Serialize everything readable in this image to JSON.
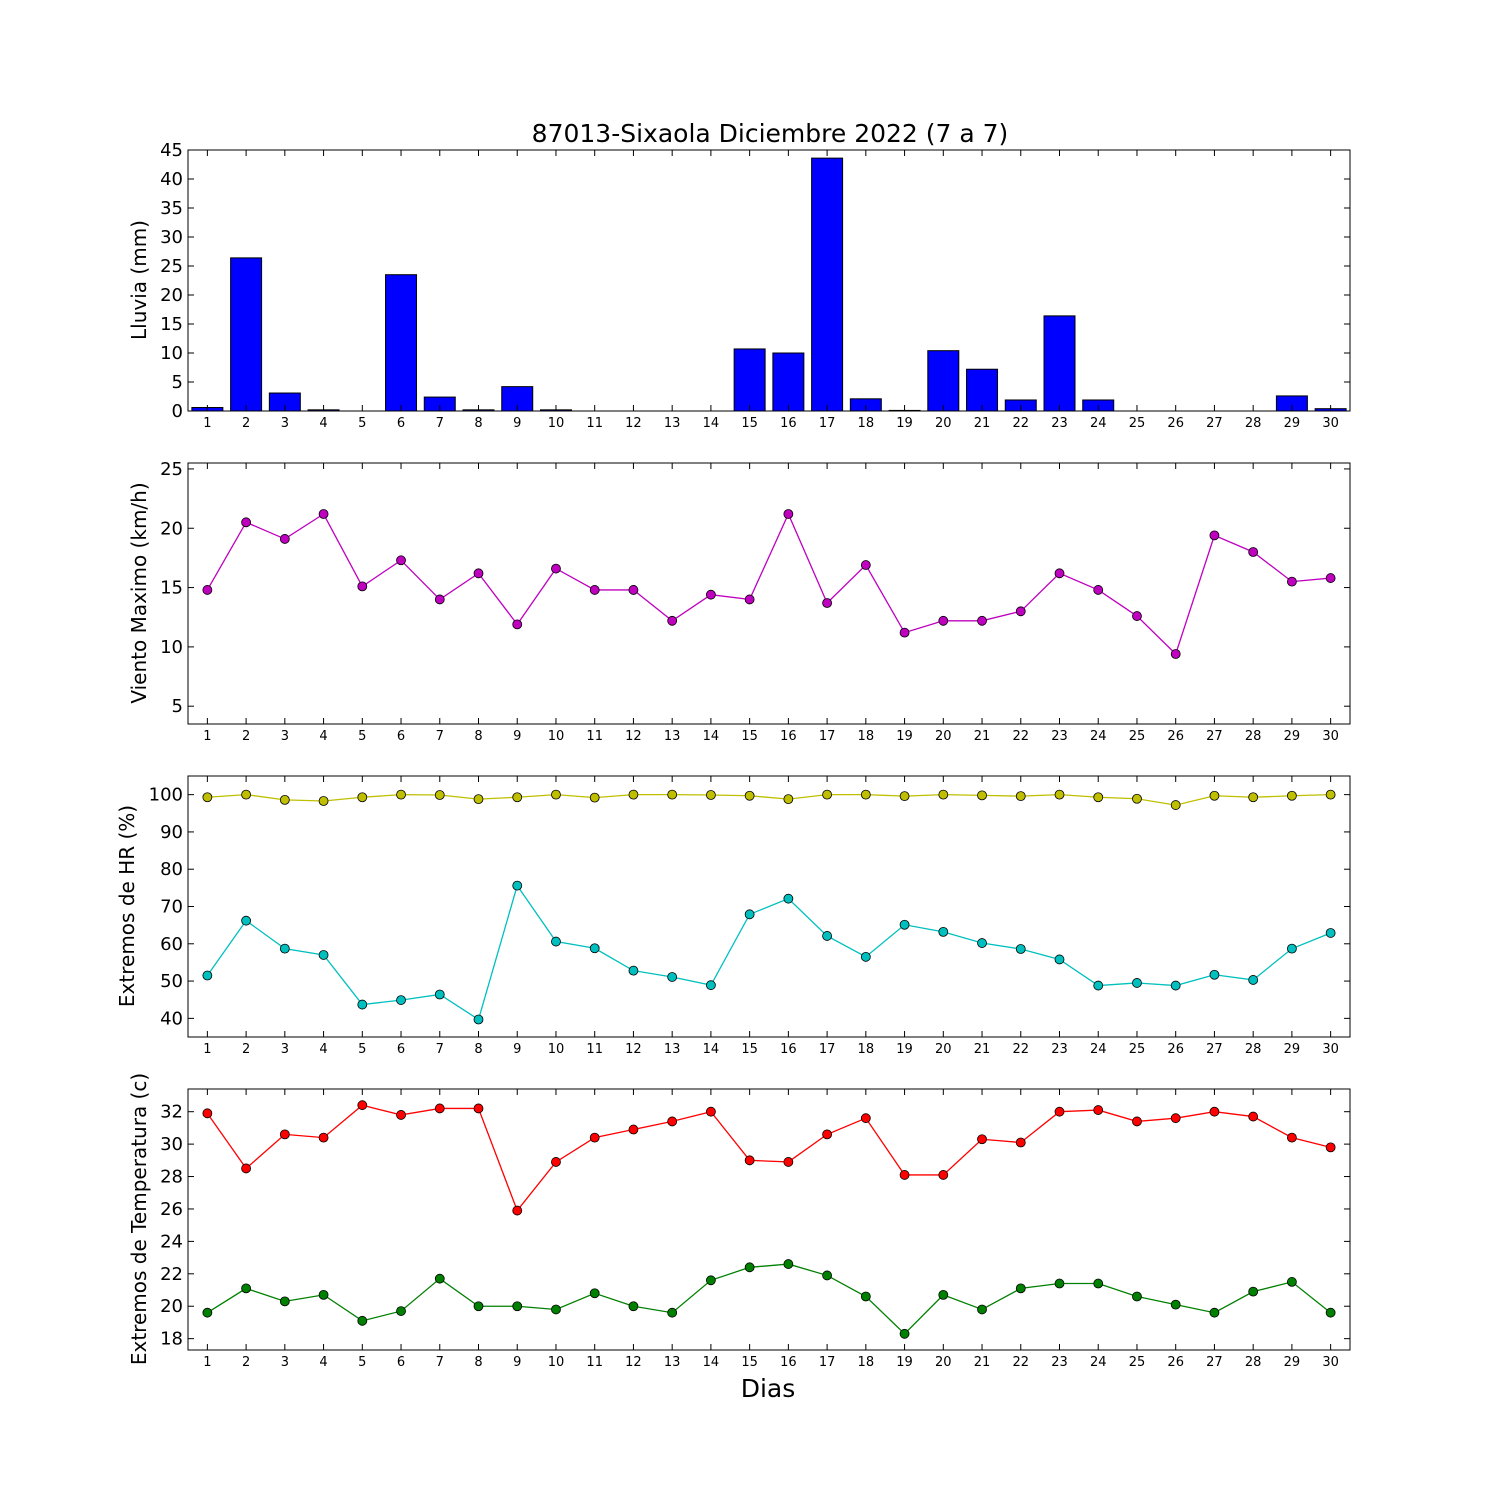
{
  "title": "87013-Sixaola Diciembre 2022  (7 a 7)",
  "xlabel": "Dias",
  "colors": {
    "rain": "#0000ff",
    "wind": "#bf00bf",
    "hr_max": "#bfbf00",
    "hr_min": "#00bfbf",
    "temp_max": "#ff0000",
    "temp_min": "#008000"
  },
  "chart_data": [
    {
      "type": "bar",
      "ylabel": "Lluvia (mm)",
      "ylim": [
        0,
        45
      ],
      "yticks": [
        0,
        5,
        10,
        15,
        20,
        25,
        30,
        35,
        40,
        45
      ],
      "x": [
        1,
        2,
        3,
        4,
        5,
        6,
        7,
        8,
        9,
        10,
        11,
        12,
        13,
        14,
        15,
        16,
        17,
        18,
        19,
        20,
        21,
        22,
        23,
        24,
        25,
        26,
        27,
        28,
        29,
        30
      ],
      "series": [
        {
          "values": [
            0.6,
            26.4,
            3.1,
            0.2,
            0.0,
            23.5,
            2.4,
            0.2,
            4.2,
            0.2,
            0.0,
            0.0,
            0.0,
            0.0,
            10.7,
            10.0,
            43.6,
            2.1,
            0.1,
            10.4,
            7.2,
            1.9,
            16.4,
            1.9,
            0.0,
            0.0,
            0.0,
            0.0,
            2.6,
            0.4
          ]
        }
      ]
    },
    {
      "type": "line",
      "ylabel": "Viento Maximo (km/h)",
      "ylim": [
        3.5,
        25.5
      ],
      "yticks": [
        5,
        10,
        15,
        20,
        25
      ],
      "x": [
        1,
        2,
        3,
        4,
        5,
        6,
        7,
        8,
        9,
        10,
        11,
        12,
        13,
        14,
        15,
        16,
        17,
        18,
        19,
        20,
        21,
        22,
        23,
        24,
        25,
        26,
        27,
        28,
        29,
        30
      ],
      "series": [
        {
          "values": [
            14.8,
            20.5,
            19.1,
            21.2,
            15.1,
            17.3,
            14.0,
            16.2,
            11.9,
            16.6,
            14.8,
            14.8,
            12.2,
            14.4,
            14.0,
            21.2,
            13.7,
            16.9,
            11.2,
            12.2,
            12.2,
            13.0,
            16.2,
            14.8,
            12.6,
            9.4,
            19.4,
            18.0,
            15.5,
            15.8
          ]
        }
      ]
    },
    {
      "type": "line",
      "ylabel": "Extremos de HR (%)",
      "ylim": [
        35,
        105
      ],
      "yticks": [
        40,
        50,
        60,
        70,
        80,
        90,
        100
      ],
      "x": [
        1,
        2,
        3,
        4,
        5,
        6,
        7,
        8,
        9,
        10,
        11,
        12,
        13,
        14,
        15,
        16,
        17,
        18,
        19,
        20,
        21,
        22,
        23,
        24,
        25,
        26,
        27,
        28,
        29,
        30
      ],
      "series": [
        {
          "values": [
            99.3,
            100,
            98.6,
            98.3,
            99.3,
            100,
            99.9,
            98.8,
            99.3,
            100,
            99.2,
            100,
            100,
            99.9,
            99.7,
            98.8,
            100,
            100,
            99.6,
            100,
            99.8,
            99.6,
            100,
            99.3,
            98.9,
            97.2,
            99.7,
            99.3,
            99.7,
            100
          ]
        },
        {
          "values": [
            51.5,
            66.2,
            58.7,
            57.0,
            43.7,
            44.9,
            46.4,
            39.7,
            75.6,
            60.6,
            58.8,
            52.8,
            51.1,
            48.9,
            67.9,
            72.1,
            62.1,
            56.5,
            65.1,
            63.2,
            60.2,
            58.6,
            55.8,
            48.8,
            49.5,
            48.8,
            51.7,
            50.3,
            58.7,
            62.9
          ]
        }
      ]
    },
    {
      "type": "line",
      "ylabel": "Extremos de Temperatura (c)",
      "ylim": [
        17.3,
        33.4
      ],
      "yticks": [
        18,
        20,
        22,
        24,
        26,
        28,
        30,
        32
      ],
      "x": [
        1,
        2,
        3,
        4,
        5,
        6,
        7,
        8,
        9,
        10,
        11,
        12,
        13,
        14,
        15,
        16,
        17,
        18,
        19,
        20,
        21,
        22,
        23,
        24,
        25,
        26,
        27,
        28,
        29,
        30
      ],
      "series": [
        {
          "values": [
            31.9,
            28.5,
            30.6,
            30.4,
            32.4,
            31.8,
            32.2,
            32.2,
            25.9,
            28.9,
            30.4,
            30.9,
            31.4,
            32.0,
            29.0,
            28.9,
            30.6,
            31.6,
            28.1,
            28.1,
            30.3,
            30.1,
            32.0,
            32.1,
            31.4,
            31.6,
            32.0,
            31.7,
            30.4,
            29.8
          ]
        },
        {
          "values": [
            19.6,
            21.1,
            20.3,
            20.7,
            19.1,
            19.7,
            21.7,
            20.0,
            20.0,
            19.8,
            20.8,
            20.0,
            19.6,
            21.6,
            22.4,
            22.6,
            21.9,
            20.6,
            18.3,
            20.7,
            19.8,
            21.1,
            21.4,
            21.4,
            20.6,
            20.1,
            19.6,
            20.9,
            21.5,
            19.6
          ]
        }
      ]
    }
  ]
}
